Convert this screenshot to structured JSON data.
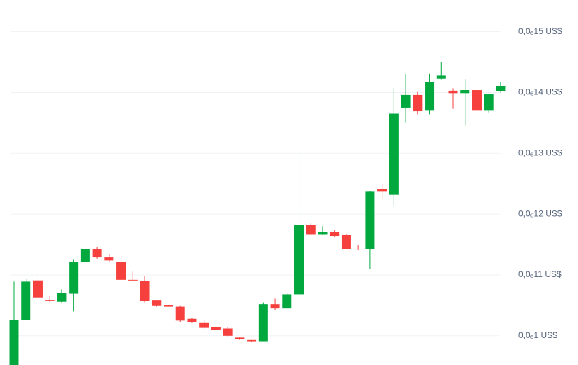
{
  "chart_data": {
    "type": "candlestick",
    "ylim": [
      9.52e-08,
      1.552e-07
    ],
    "yticks": [
      {
        "value": 1.5e-07,
        "label": "0,0₆15 US$"
      },
      {
        "value": 1.4e-07,
        "label": "0,0₆14 US$"
      },
      {
        "value": 1.3e-07,
        "label": "0,0₆13 US$"
      },
      {
        "value": 1.2e-07,
        "label": "0,0₆12 US$"
      },
      {
        "value": 1.1e-07,
        "label": "0,0₆11 US$"
      },
      {
        "value": 1e-07,
        "label": "0,0₆1 US$"
      }
    ],
    "grid": true,
    "up_color": "#00a83e",
    "down_color": "#f6403d",
    "open": [
      9.52e-08,
      1.026e-07,
      1.091e-07,
      1.059e-07,
      1.056e-07,
      1.069e-07,
      1.121e-07,
      1.143e-07,
      1.129e-07,
      1.121e-07,
      1.092e-07,
      1.09e-07,
      1.059e-07,
      1.05e-07,
      1.048e-07,
      1.028e-07,
      1.021e-07,
      1.014e-07,
      1.012e-07,
      9.97e-08,
      9.93e-08,
      9.91e-08,
      1.052e-07,
      1.045e-07,
      1.068e-07,
      1.182e-07,
      1.167e-07,
      1.17e-07,
      1.166e-07,
      1.143e-07,
      1.143e-07,
      1.241e-07,
      1.232e-07,
      1.375e-07,
      1.396e-07,
      1.371e-07,
      1.423e-07,
      1.403e-07,
      1.399e-07,
      1.404e-07,
      1.371e-07,
      1.402e-07
    ],
    "high": [
      1.089e-07,
      1.094e-07,
      1.097e-07,
      1.065e-07,
      1.076e-07,
      1.125e-07,
      1.142e-07,
      1.146e-07,
      1.135e-07,
      1.131e-07,
      1.106e-07,
      1.098e-07,
      1.059e-07,
      1.05e-07,
      1.049e-07,
      1.03e-07,
      1.025e-07,
      1.016e-07,
      1.014e-07,
      9.98e-08,
      9.93e-08,
      1.055e-07,
      1.061e-07,
      1.069e-07,
      1.303e-07,
      1.185e-07,
      1.18e-07,
      1.174e-07,
      1.167e-07,
      1.149e-07,
      1.238e-07,
      1.249e-07,
      1.408e-07,
      1.43e-07,
      1.401e-07,
      1.431e-07,
      1.45e-07,
      1.407e-07,
      1.422e-07,
      1.406e-07,
      1.398e-07,
      1.417e-07
    ],
    "low": [
      9.52e-08,
      1.026e-07,
      1.063e-07,
      1.055e-07,
      1.055e-07,
      1.04e-07,
      1.121e-07,
      1.127e-07,
      1.121e-07,
      1.09e-07,
      1.09e-07,
      1.055e-07,
      1.048e-07,
      1.048e-07,
      1.022e-07,
      1.021e-07,
      1.012e-07,
      1.008e-07,
      9.99e-08,
      9.93e-08,
      9.9e-08,
      9.91e-08,
      1.042e-07,
      1.045e-07,
      1.065e-07,
      1.166e-07,
      1.166e-07,
      1.162e-07,
      1.142e-07,
      1.141e-07,
      1.11e-07,
      1.225e-07,
      1.214e-07,
      1.351e-07,
      1.364e-07,
      1.364e-07,
      1.421e-07,
      1.373e-07,
      1.345e-07,
      1.37e-07,
      1.367e-07,
      1.4e-07
    ],
    "close": [
      1.026e-07,
      1.089e-07,
      1.063e-07,
      1.057e-07,
      1.07e-07,
      1.122e-07,
      1.142e-07,
      1.129e-07,
      1.124e-07,
      1.092e-07,
      1.091e-07,
      1.057e-07,
      1.049e-07,
      1.048e-07,
      1.025e-07,
      1.022e-07,
      1.013e-07,
      1.01e-07,
      1e-07,
      9.94e-08,
      9.91e-08,
      1.052e-07,
      1.045e-07,
      1.068e-07,
      1.182e-07,
      1.167e-07,
      1.17e-07,
      1.164e-07,
      1.143e-07,
      1.142e-07,
      1.237e-07,
      1.237e-07,
      1.365e-07,
      1.396e-07,
      1.369e-07,
      1.418e-07,
      1.428e-07,
      1.399e-07,
      1.404e-07,
      1.371e-07,
      1.397e-07,
      1.41e-07
    ]
  }
}
